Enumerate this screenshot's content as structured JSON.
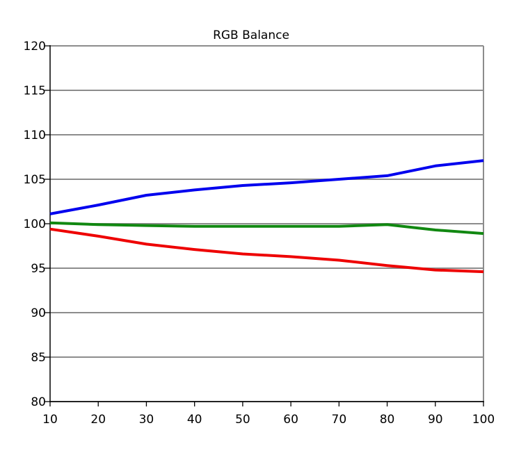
{
  "chart_data": {
    "type": "line",
    "title": "RGB Balance",
    "xlabel": "",
    "ylabel": "",
    "x": [
      10,
      20,
      30,
      40,
      50,
      60,
      70,
      80,
      90,
      100
    ],
    "xlim": [
      10,
      100
    ],
    "ylim": [
      80,
      120
    ],
    "y_ticks": [
      80,
      85,
      90,
      95,
      100,
      105,
      110,
      115,
      120
    ],
    "x_ticks": [
      10,
      20,
      30,
      40,
      50,
      60,
      70,
      80,
      90,
      100
    ],
    "grid": "horizontal",
    "legend": "none",
    "series": [
      {
        "color": "#0000ee",
        "values": [
          101.1,
          102.1,
          103.2,
          103.8,
          104.3,
          104.6,
          105.0,
          105.4,
          106.5,
          107.1
        ]
      },
      {
        "color": "#118811",
        "values": [
          100.1,
          99.9,
          99.8,
          99.7,
          99.7,
          99.7,
          99.7,
          99.9,
          99.3,
          98.9
        ]
      },
      {
        "color": "#ee0000",
        "values": [
          99.4,
          98.6,
          97.7,
          97.1,
          96.6,
          96.3,
          95.9,
          95.3,
          94.8,
          94.6
        ]
      }
    ]
  }
}
